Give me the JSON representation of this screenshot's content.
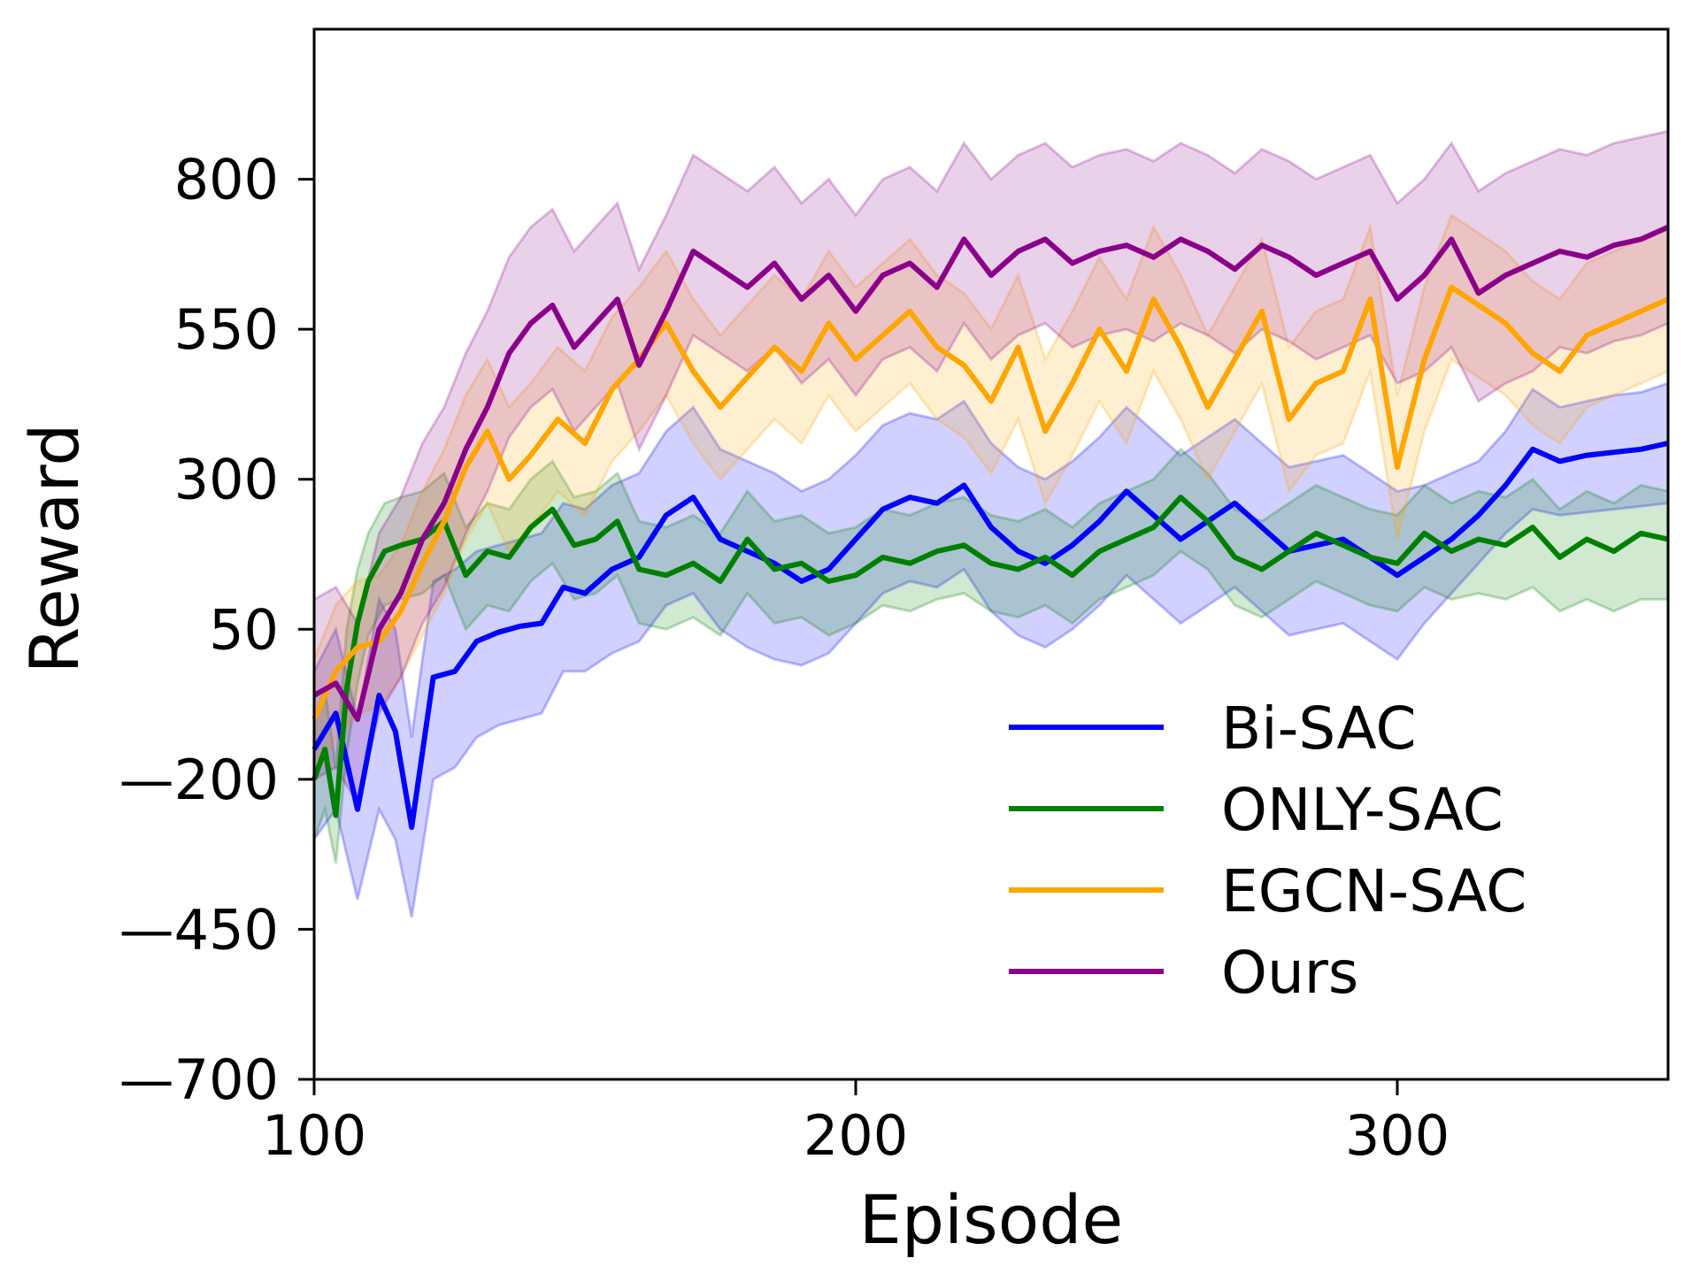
{
  "chart_data": {
    "type": "line",
    "title": "",
    "xlabel": "Episode",
    "ylabel": "Reward",
    "xlim": [
      100,
      350
    ],
    "ylim": [
      -700,
      1050
    ],
    "xticks": [
      100,
      200,
      300
    ],
    "yticks": [
      -700,
      -450,
      -200,
      50,
      300,
      550,
      800
    ],
    "ytick_labels": [
      "—700",
      "—450",
      "—200",
      "50",
      "300",
      "550",
      "800"
    ],
    "grid": false,
    "legend": "lower-right",
    "series": [
      {
        "name": "Bi-SAC",
        "color": "#0000ff",
        "x": [
          100,
          104,
          108,
          112,
          115,
          118,
          122,
          126,
          130,
          134,
          138,
          142,
          146,
          150,
          155,
          160,
          165,
          170,
          175,
          180,
          185,
          190,
          195,
          200,
          205,
          210,
          215,
          220,
          225,
          230,
          235,
          240,
          245,
          250,
          255,
          260,
          265,
          270,
          275,
          280,
          285,
          290,
          295,
          300,
          305,
          310,
          315,
          320,
          325,
          330,
          335,
          340,
          345,
          350
        ],
        "mean": [
          -150,
          -90,
          -250,
          -60,
          -120,
          -280,
          -30,
          -20,
          30,
          45,
          55,
          60,
          120,
          110,
          150,
          170,
          240,
          270,
          200,
          180,
          160,
          130,
          150,
          200,
          250,
          270,
          260,
          290,
          220,
          180,
          160,
          190,
          230,
          280,
          240,
          200,
          230,
          260,
          220,
          180,
          190,
          200,
          170,
          140,
          170,
          200,
          240,
          290,
          350,
          330,
          340,
          345,
          350,
          360
        ],
        "lower": [
          -300,
          -250,
          -400,
          -250,
          -300,
          -430,
          -200,
          -180,
          -130,
          -110,
          -100,
          -90,
          -20,
          -20,
          10,
          30,
          90,
          110,
          50,
          20,
          0,
          -10,
          10,
          60,
          110,
          130,
          120,
          150,
          80,
          40,
          20,
          50,
          90,
          140,
          100,
          60,
          90,
          120,
          80,
          40,
          50,
          60,
          30,
          0,
          60,
          110,
          160,
          210,
          250,
          240,
          245,
          250,
          255,
          260
        ],
        "upper": [
          -20,
          50,
          -100,
          100,
          50,
          -130,
          130,
          150,
          180,
          190,
          200,
          210,
          260,
          250,
          290,
          310,
          380,
          420,
          350,
          330,
          310,
          280,
          300,
          340,
          390,
          410,
          400,
          430,
          360,
          320,
          300,
          330,
          370,
          420,
          380,
          340,
          370,
          400,
          360,
          320,
          330,
          340,
          310,
          280,
          290,
          310,
          330,
          380,
          450,
          420,
          430,
          440,
          445,
          460
        ]
      },
      {
        "name": "ONLY-SAC",
        "color": "#008000",
        "x": [
          100,
          102,
          104,
          106,
          108,
          110,
          113,
          116,
          120,
          124,
          128,
          132,
          136,
          140,
          144,
          148,
          152,
          156,
          160,
          165,
          170,
          175,
          180,
          185,
          190,
          195,
          200,
          205,
          210,
          215,
          220,
          225,
          230,
          235,
          240,
          245,
          250,
          255,
          260,
          265,
          270,
          275,
          280,
          285,
          290,
          295,
          300,
          305,
          310,
          315,
          320,
          325,
          330,
          335,
          340,
          345,
          350
        ],
        "mean": [
          -200,
          -150,
          -260,
          -50,
          60,
          130,
          180,
          190,
          200,
          230,
          140,
          180,
          170,
          220,
          250,
          190,
          200,
          230,
          150,
          140,
          160,
          130,
          200,
          150,
          160,
          130,
          140,
          170,
          160,
          180,
          190,
          160,
          150,
          170,
          140,
          180,
          200,
          220,
          270,
          230,
          170,
          150,
          180,
          210,
          190,
          170,
          160,
          210,
          180,
          200,
          190,
          220,
          170,
          200,
          180,
          210,
          200
        ],
        "lower": [
          -300,
          -250,
          -340,
          -160,
          -40,
          40,
          90,
          100,
          110,
          140,
          50,
          90,
          80,
          130,
          160,
          100,
          110,
          140,
          60,
          50,
          70,
          40,
          110,
          60,
          70,
          40,
          60,
          90,
          80,
          100,
          110,
          80,
          70,
          90,
          60,
          100,
          120,
          140,
          180,
          150,
          90,
          70,
          100,
          130,
          110,
          90,
          80,
          120,
          100,
          110,
          100,
          120,
          80,
          100,
          80,
          100,
          100
        ],
        "upper": [
          -100,
          -50,
          -180,
          50,
          150,
          210,
          260,
          270,
          280,
          310,
          220,
          260,
          250,
          300,
          330,
          270,
          280,
          310,
          230,
          220,
          240,
          210,
          280,
          230,
          240,
          210,
          220,
          250,
          240,
          260,
          270,
          240,
          230,
          250,
          220,
          260,
          280,
          300,
          350,
          310,
          250,
          230,
          260,
          290,
          270,
          250,
          240,
          290,
          260,
          280,
          270,
          300,
          250,
          280,
          260,
          290,
          280
        ]
      },
      {
        "name": "EGCN-SAC",
        "color": "#ffa500",
        "x": [
          100,
          104,
          108,
          112,
          116,
          120,
          124,
          128,
          132,
          136,
          140,
          145,
          150,
          155,
          160,
          165,
          170,
          175,
          180,
          185,
          190,
          195,
          200,
          205,
          210,
          215,
          220,
          225,
          230,
          235,
          240,
          245,
          250,
          255,
          260,
          265,
          270,
          275,
          280,
          285,
          290,
          295,
          300,
          305,
          310,
          315,
          320,
          325,
          330,
          335,
          340,
          345,
          350
        ],
        "mean": [
          -100,
          -20,
          20,
          30,
          80,
          160,
          230,
          320,
          380,
          300,
          340,
          400,
          360,
          450,
          500,
          560,
          480,
          420,
          470,
          520,
          480,
          560,
          500,
          540,
          580,
          520,
          490,
          430,
          520,
          380,
          460,
          550,
          480,
          600,
          520,
          420,
          500,
          580,
          400,
          460,
          480,
          600,
          320,
          500,
          620,
          590,
          560,
          510,
          480,
          540,
          560,
          580,
          600
        ],
        "lower": [
          -200,
          -130,
          -90,
          -80,
          -30,
          40,
          110,
          200,
          260,
          180,
          220,
          280,
          240,
          330,
          380,
          440,
          360,
          300,
          350,
          400,
          360,
          440,
          380,
          420,
          460,
          400,
          370,
          310,
          400,
          260,
          340,
          430,
          360,
          480,
          400,
          300,
          380,
          460,
          280,
          340,
          360,
          480,
          200,
          380,
          500,
          470,
          440,
          390,
          360,
          420,
          440,
          460,
          480
        ],
        "upper": [
          0,
          90,
          130,
          140,
          190,
          280,
          350,
          440,
          500,
          420,
          460,
          520,
          480,
          570,
          620,
          680,
          600,
          540,
          590,
          640,
          600,
          680,
          620,
          660,
          700,
          640,
          610,
          550,
          640,
          500,
          580,
          670,
          600,
          720,
          640,
          540,
          620,
          700,
          520,
          580,
          600,
          720,
          440,
          620,
          740,
          710,
          680,
          630,
          600,
          660,
          680,
          700,
          720
        ]
      },
      {
        "name": "Ours",
        "color": "#8b008b",
        "x": [
          100,
          104,
          108,
          112,
          116,
          120,
          124,
          128,
          132,
          136,
          140,
          144,
          148,
          152,
          156,
          160,
          165,
          170,
          175,
          180,
          185,
          190,
          195,
          200,
          205,
          210,
          215,
          220,
          225,
          230,
          235,
          240,
          245,
          250,
          255,
          260,
          265,
          270,
          275,
          280,
          285,
          290,
          295,
          300,
          305,
          310,
          315,
          320,
          325,
          330,
          335,
          340,
          345,
          350
        ],
        "mean": [
          -60,
          -40,
          -100,
          50,
          110,
          200,
          260,
          350,
          420,
          510,
          560,
          590,
          520,
          560,
          600,
          490,
          580,
          680,
          650,
          620,
          660,
          600,
          640,
          580,
          640,
          660,
          620,
          700,
          640,
          680,
          700,
          660,
          680,
          690,
          670,
          700,
          680,
          650,
          690,
          670,
          640,
          660,
          680,
          600,
          640,
          700,
          610,
          640,
          660,
          680,
          670,
          690,
          700,
          720
        ],
        "lower": [
          -200,
          -180,
          -240,
          -90,
          -30,
          60,
          120,
          210,
          280,
          370,
          420,
          450,
          380,
          420,
          460,
          350,
          440,
          540,
          510,
          480,
          520,
          460,
          500,
          440,
          500,
          520,
          480,
          560,
          500,
          540,
          560,
          520,
          540,
          550,
          530,
          560,
          540,
          510,
          550,
          530,
          500,
          520,
          540,
          460,
          480,
          520,
          430,
          460,
          480,
          520,
          510,
          530,
          540,
          560
        ],
        "upper": [
          100,
          120,
          60,
          210,
          270,
          360,
          420,
          510,
          580,
          670,
          720,
          750,
          680,
          720,
          760,
          650,
          740,
          840,
          810,
          780,
          820,
          760,
          800,
          740,
          800,
          820,
          780,
          860,
          800,
          840,
          860,
          820,
          840,
          850,
          830,
          860,
          840,
          810,
          850,
          830,
          800,
          820,
          840,
          760,
          800,
          860,
          780,
          810,
          830,
          850,
          840,
          860,
          870,
          880
        ]
      }
    ]
  }
}
